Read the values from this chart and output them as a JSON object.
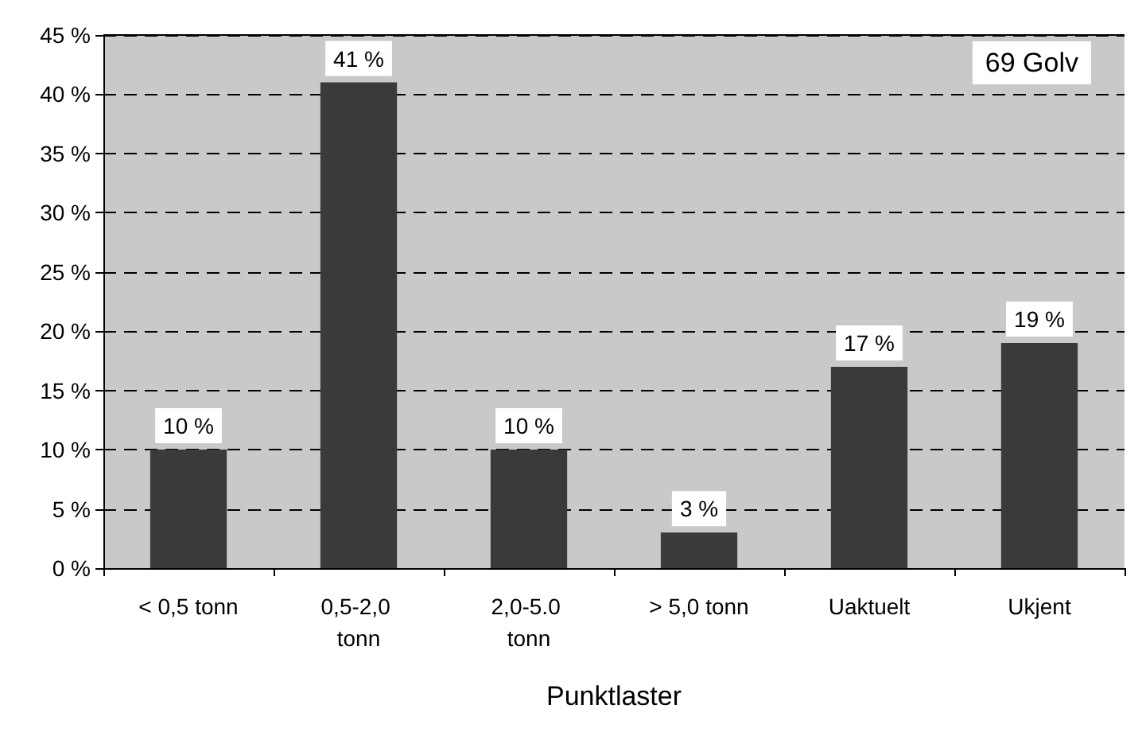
{
  "chart_data": {
    "type": "bar",
    "xlabel": "Punktlaster",
    "categories": [
      "< 0,5 tonn",
      "0,5-2,0 tonn",
      "2,0-5.0 tonn",
      "> 5,0 tonn",
      "Uaktuelt",
      "Ukjent"
    ],
    "values": [
      10,
      41,
      10,
      3,
      17,
      19
    ],
    "value_labels": [
      "10 %",
      "41 %",
      "10 %",
      "3 %",
      "17 %",
      "19 %"
    ],
    "color": "#3a3a3a",
    "ylim": [
      0,
      45
    ],
    "yticks": [
      {
        "value": 0,
        "label": "0 %"
      },
      {
        "value": 5,
        "label": "5 %"
      },
      {
        "value": 10,
        "label": "10 %"
      },
      {
        "value": 15,
        "label": "15 %"
      },
      {
        "value": 20,
        "label": "20 %"
      },
      {
        "value": 25,
        "label": "25 %"
      },
      {
        "value": 30,
        "label": "30 %"
      },
      {
        "value": 35,
        "label": "35 %"
      },
      {
        "value": 40,
        "label": "40 %"
      },
      {
        "value": 45,
        "label": "45 %"
      }
    ],
    "grid": true,
    "annotations": [
      "69 Golv"
    ]
  }
}
